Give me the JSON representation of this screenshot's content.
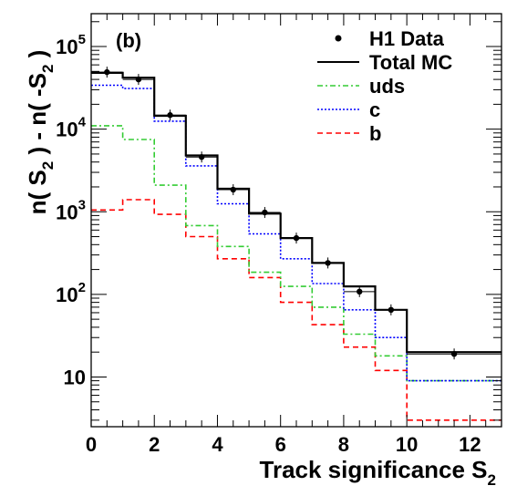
{
  "chart_data": {
    "type": "line",
    "panel_label": "(b)",
    "xlabel": "Track significance S",
    "xlabel_sub": "2",
    "ylabel_parts": [
      "n( S",
      "2",
      " ) - n( -S",
      "2",
      " )"
    ],
    "xlim": [
      0,
      13
    ],
    "ylim": [
      2.5,
      250000
    ],
    "y_scale": "log",
    "x_ticks": [
      0,
      2,
      4,
      6,
      8,
      10,
      12
    ],
    "y_ticks": [
      {
        "value": 10,
        "base": "10",
        "exp": ""
      },
      {
        "value": 100,
        "base": "10",
        "exp": "2"
      },
      {
        "value": 1000,
        "base": "10",
        "exp": "3"
      },
      {
        "value": 10000,
        "base": "10",
        "exp": "4"
      },
      {
        "value": 100000,
        "base": "10",
        "exp": "5"
      }
    ],
    "bin_edges": [
      0,
      1,
      2,
      3,
      4,
      5,
      6,
      7,
      8,
      9,
      10,
      13
    ],
    "legend_position": "top-right",
    "series": [
      {
        "name": "Total MC",
        "style": "hist",
        "color": "#000000",
        "dash": "",
        "values": [
          48000,
          42000,
          14500,
          4800,
          1900,
          950,
          480,
          240,
          125,
          65,
          20
        ]
      },
      {
        "name": "uds",
        "style": "hist",
        "color": "#33cc33",
        "dash": "6,3,2,3",
        "values": [
          11000,
          7500,
          2100,
          680,
          380,
          185,
          125,
          70,
          33,
          18,
          9
        ]
      },
      {
        "name": "c",
        "style": "hist",
        "color": "#0000ff",
        "dash": "2,2",
        "values": [
          34000,
          31000,
          12500,
          3600,
          1250,
          540,
          270,
          135,
          65,
          30,
          9
        ]
      },
      {
        "name": "b",
        "style": "hist",
        "color": "#ff0000",
        "dash": "6,4",
        "values": [
          1050,
          1400,
          930,
          500,
          270,
          160,
          80,
          43,
          23,
          12,
          3
        ]
      },
      {
        "name": "H1 Data",
        "style": "points",
        "color": "#000000",
        "x": [
          0.5,
          1.5,
          2.5,
          3.5,
          4.5,
          5.5,
          6.5,
          7.5,
          8.5,
          9.5,
          11.5
        ],
        "values": [
          49000,
          40000,
          14800,
          4600,
          1850,
          980,
          480,
          240,
          108,
          65,
          19
        ]
      }
    ]
  }
}
